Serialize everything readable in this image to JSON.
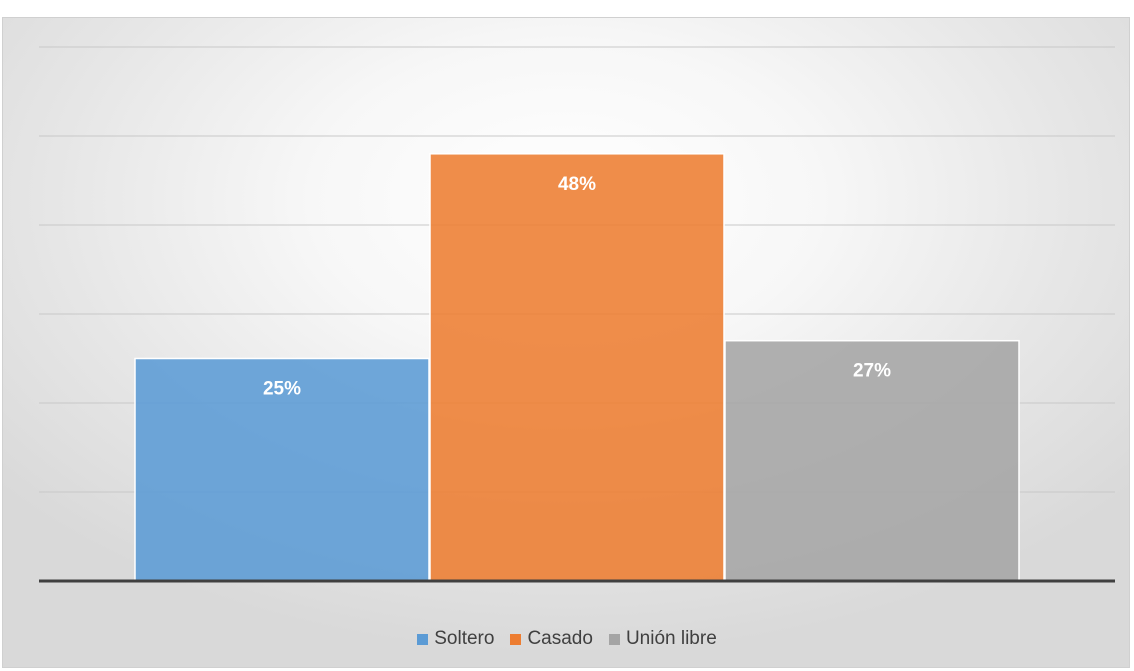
{
  "chart_data": {
    "type": "bar",
    "categories": [
      "Soltero",
      "Casado",
      "Unión libre"
    ],
    "values": [
      25,
      48,
      27
    ],
    "data_labels": [
      "25%",
      "48%",
      "27%"
    ],
    "colors": [
      "#5b9bd5",
      "#ed7d31",
      "#a5a5a5"
    ],
    "title": "",
    "xlabel": "",
    "ylabel": "",
    "ylim": [
      0,
      60
    ],
    "grid": true,
    "legend_position": "bottom",
    "legend": [
      {
        "label": "Soltero",
        "color": "#5b9bd5"
      },
      {
        "label": "Casado",
        "color": "#ed7d31"
      },
      {
        "label": "Unión libre",
        "color": "#a5a5a5"
      }
    ]
  }
}
